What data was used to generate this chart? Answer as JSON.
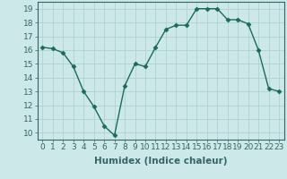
{
  "x": [
    0,
    1,
    2,
    3,
    4,
    5,
    6,
    7,
    8,
    9,
    10,
    11,
    12,
    13,
    14,
    15,
    16,
    17,
    18,
    19,
    20,
    21,
    22,
    23
  ],
  "y": [
    16.2,
    16.1,
    15.8,
    14.8,
    13.0,
    11.9,
    10.5,
    9.8,
    13.4,
    15.0,
    14.8,
    16.2,
    17.5,
    17.8,
    17.8,
    19.0,
    19.0,
    19.0,
    18.2,
    18.2,
    17.9,
    16.0,
    13.2,
    13.0
  ],
  "line_color": "#1a6b5a",
  "marker": "D",
  "marker_size": 2.5,
  "bg_color": "#cce8e8",
  "grid_color": "#aacece",
  "xlabel": "Humidex (Indice chaleur)",
  "xlim": [
    -0.5,
    23.5
  ],
  "ylim": [
    9.5,
    19.5
  ],
  "yticks": [
    10,
    11,
    12,
    13,
    14,
    15,
    16,
    17,
    18,
    19
  ],
  "xticks": [
    0,
    1,
    2,
    3,
    4,
    5,
    6,
    7,
    8,
    9,
    10,
    11,
    12,
    13,
    14,
    15,
    16,
    17,
    18,
    19,
    20,
    21,
    22,
    23
  ],
  "xlabel_fontsize": 7.5,
  "tick_fontsize": 6.5,
  "spine_color": "#336666",
  "linewidth": 1.0
}
